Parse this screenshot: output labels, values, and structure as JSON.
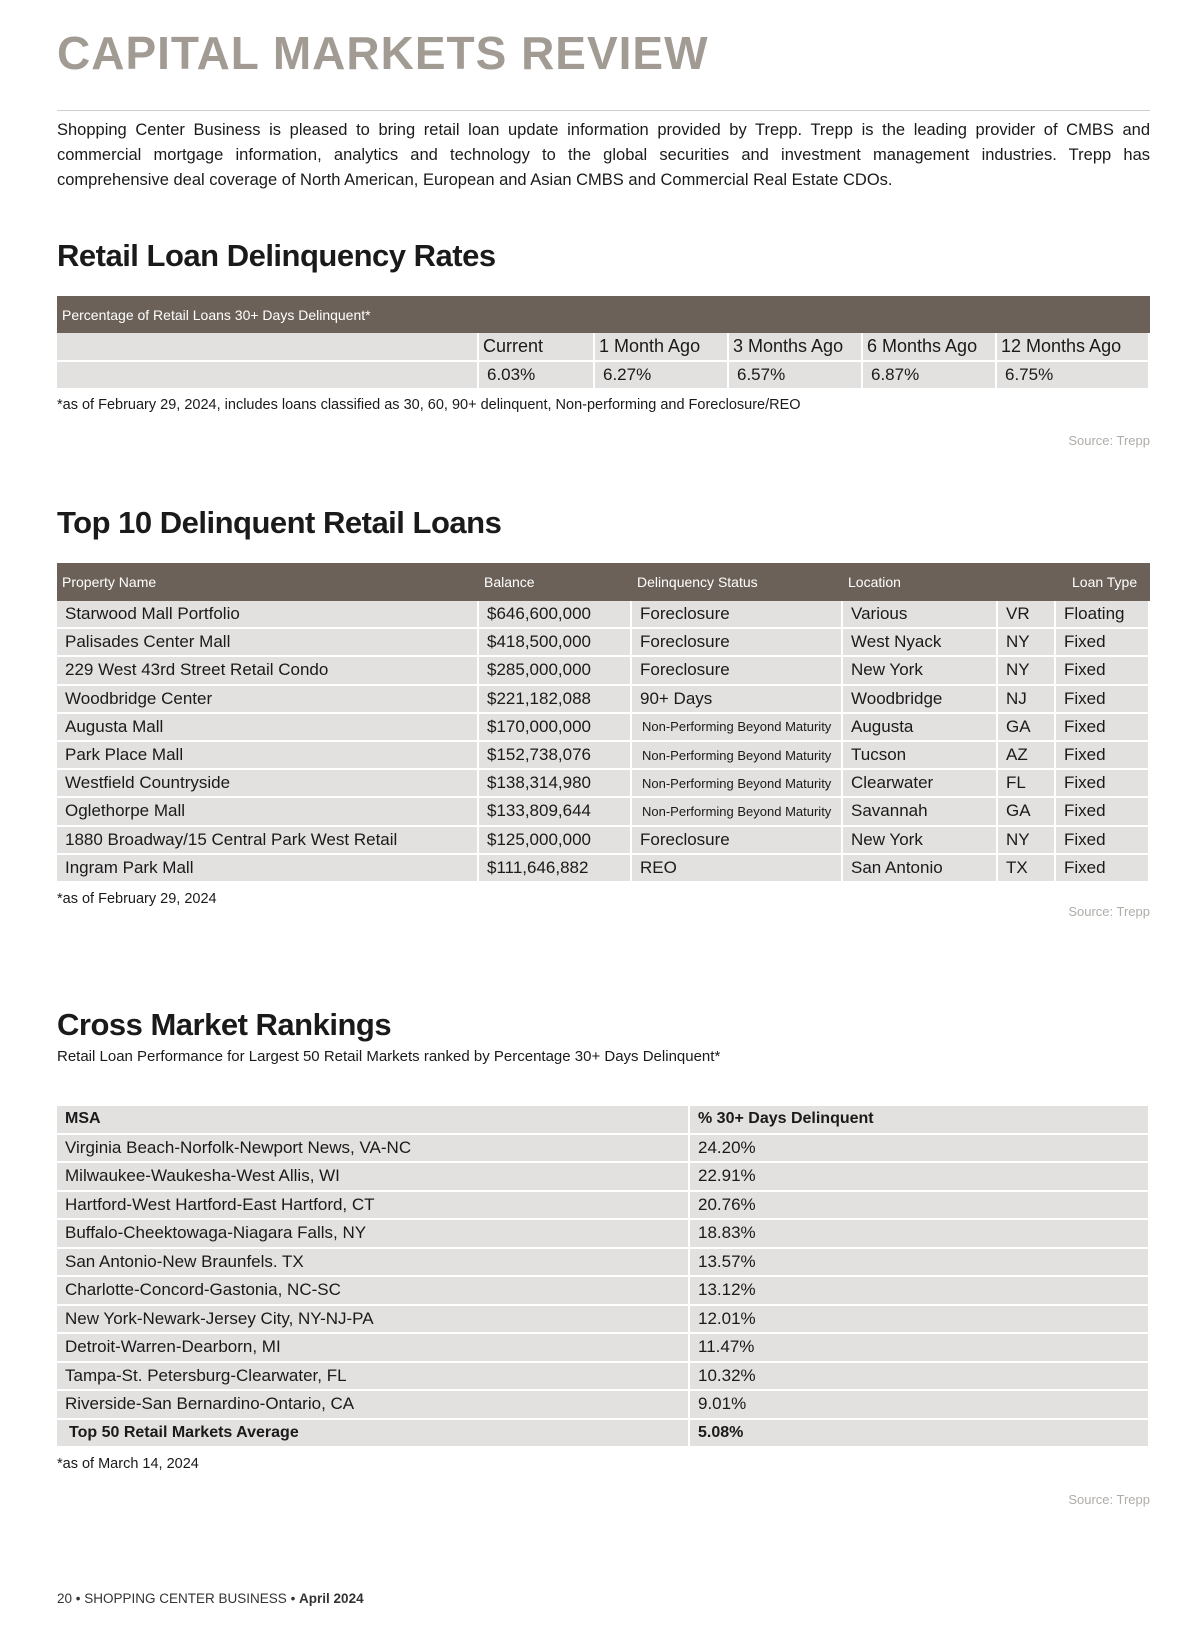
{
  "header": {
    "title": "CAPITAL MARKETS REVIEW"
  },
  "intro": "Shopping Center Business is pleased to bring retail loan update information provided by Trepp. Trepp is the leading provider of CMBS and commercial mortgage information, analytics and technology to the global securities and investment management industries. Trepp has comprehensive deal coverage of North American, European and Asian CMBS and Commercial Real Estate CDOs.",
  "delinquency": {
    "title": "Retail Loan Delinquency Rates",
    "caption": "Percentage of Retail Loans 30+ Days Delinquent*",
    "columns": [
      "Current",
      "1 Month Ago",
      "3 Months Ago",
      "6 Months Ago",
      "12 Months Ago"
    ],
    "values": [
      "6.03%",
      "6.27%",
      "6.57%",
      "6.87%",
      "6.75%"
    ],
    "footnote": "*as of February 29, 2024,  includes loans classified as 30, 60, 90+ delinquent, Non-performing and Foreclosure/REO",
    "source": "Source: Trepp"
  },
  "top10": {
    "title": "Top 10 Delinquent Retail Loans",
    "columns": [
      "Property Name",
      "Balance",
      "Delinquency Status",
      "Location",
      "Loan Type"
    ],
    "rows": [
      [
        "Starwood Mall Portfolio",
        "$646,600,000",
        "Foreclosure",
        "Various",
        "VR",
        "Floating"
      ],
      [
        "Palisades Center Mall",
        "$418,500,000",
        "Foreclosure",
        "West Nyack",
        "NY",
        "Fixed"
      ],
      [
        "229 West 43rd Street Retail Condo",
        "$285,000,000",
        "Foreclosure",
        "New York",
        "NY",
        "Fixed"
      ],
      [
        "Woodbridge Center",
        "$221,182,088",
        "90+ Days",
        "Woodbridge",
        "NJ",
        "Fixed"
      ],
      [
        "Augusta Mall",
        "$170,000,000",
        "Non-Performing Beyond Maturity",
        "Augusta",
        "GA",
        "Fixed"
      ],
      [
        "Park Place Mall",
        "$152,738,076",
        "Non-Performing Beyond Maturity",
        "Tucson",
        "AZ",
        "Fixed"
      ],
      [
        "Westfield Countryside",
        "$138,314,980",
        "Non-Performing Beyond Maturity",
        "Clearwater",
        "FL",
        "Fixed"
      ],
      [
        "Oglethorpe Mall",
        "$133,809,644",
        "Non-Performing Beyond Maturity",
        "Savannah",
        "GA",
        "Fixed"
      ],
      [
        "1880 Broadway/15 Central Park West Retail",
        "$125,000,000",
        "Foreclosure",
        "New York",
        "NY",
        "Fixed"
      ],
      [
        "Ingram Park Mall",
        "$111,646,882",
        "REO",
        "San Antonio",
        "TX",
        "Fixed"
      ]
    ],
    "footnote": "*as of February 29, 2024",
    "source": "Source: Trepp"
  },
  "cross": {
    "title": "Cross Market Rankings",
    "subtitle": "Retail Loan Performance for Largest 50 Retail Markets ranked by Percentage 30+ Days Delinquent*",
    "columns": [
      "MSA",
      "% 30+ Days Delinquent"
    ],
    "rows": [
      [
        "Virginia Beach-Norfolk-Newport News, VA-NC",
        "24.20%"
      ],
      [
        "Milwaukee-Waukesha-West Allis, WI",
        "22.91%"
      ],
      [
        "Hartford-West Hartford-East Hartford, CT",
        "20.76%"
      ],
      [
        "Buffalo-Cheektowaga-Niagara Falls, NY",
        "18.83%"
      ],
      [
        "San Antonio-New Braunfels. TX",
        "13.57%"
      ],
      [
        "Charlotte-Concord-Gastonia, NC-SC",
        "13.12%"
      ],
      [
        "New York-Newark-Jersey City, NY-NJ-PA",
        "12.01%"
      ],
      [
        "Detroit-Warren-Dearborn, MI",
        "11.47%"
      ],
      [
        "Tampa-St. Petersburg-Clearwater, FL",
        "10.32%"
      ],
      [
        "Riverside-San Bernardino-Ontario, CA",
        "9.01%"
      ]
    ],
    "average": [
      "Top 50 Retail Markets Average",
      "5.08%"
    ],
    "footnote": "*as of March 14, 2024",
    "source": "Source: Trepp"
  },
  "footer": {
    "page": "20",
    "publication": "SHOPPING CENTER BUSINESS",
    "issue": "April 2024"
  }
}
